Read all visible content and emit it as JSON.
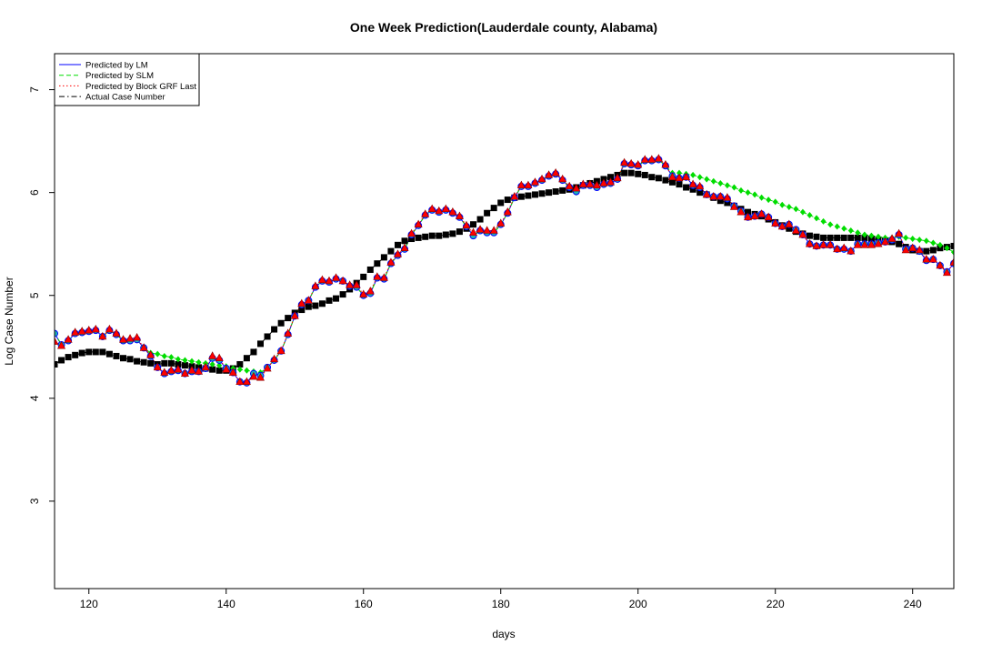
{
  "chart_data": {
    "type": "scatter",
    "title": "One Week Prediction(Lauderdale county, Alabama)",
    "xlabel": "days",
    "ylabel": "Log Case Number",
    "xlim": [
      115,
      246
    ],
    "ylim": [
      2.15,
      7.35
    ],
    "x_ticks": [
      120,
      140,
      160,
      180,
      200,
      220,
      240
    ],
    "y_ticks": [
      3,
      4,
      5,
      6,
      7
    ],
    "legend_position": "top-left",
    "series": [
      {
        "name": "Predicted by LM",
        "color": "#0000ff",
        "line_style": "solid",
        "marker": "circle",
        "x": [
          115,
          116,
          117,
          118,
          119,
          120,
          121,
          122,
          123,
          124,
          125,
          126,
          127,
          128,
          129,
          130,
          131,
          132,
          133,
          134,
          135,
          136,
          137,
          138,
          139,
          140,
          141,
          142,
          143,
          144,
          145,
          146,
          147,
          148,
          149,
          150,
          151,
          152,
          153,
          154,
          155,
          156,
          157,
          158,
          159,
          160,
          161,
          162,
          163,
          164,
          165,
          166,
          167,
          168,
          169,
          170,
          171,
          172,
          173,
          174,
          175,
          176,
          177,
          178,
          179,
          180,
          181,
          182,
          183,
          184,
          185,
          186,
          187,
          188,
          189,
          190,
          191,
          192,
          193,
          194,
          195,
          196,
          197,
          198,
          199,
          200,
          201,
          202,
          203,
          204,
          205,
          206,
          207,
          208,
          209,
          210,
          211,
          212,
          213,
          214,
          215,
          216,
          217,
          218,
          219,
          220,
          221,
          222,
          223,
          224,
          225,
          226,
          227,
          228,
          229,
          230,
          231,
          232,
          233,
          234,
          235,
          236,
          237,
          238,
          239,
          240,
          241,
          242,
          243,
          244,
          245,
          246
        ],
        "values": [
          4.63,
          4.52,
          4.56,
          4.63,
          4.64,
          4.65,
          4.66,
          4.6,
          4.66,
          4.62,
          4.56,
          4.56,
          4.57,
          4.49,
          4.41,
          4.3,
          4.24,
          4.26,
          4.27,
          4.24,
          4.26,
          4.26,
          4.29,
          4.39,
          4.37,
          4.29,
          4.25,
          4.16,
          4.15,
          4.24,
          4.22,
          4.3,
          4.37,
          4.46,
          4.62,
          4.8,
          4.91,
          4.95,
          5.08,
          5.14,
          5.13,
          5.16,
          5.14,
          5.09,
          5.08,
          5.0,
          5.02,
          5.17,
          5.16,
          5.31,
          5.39,
          5.45,
          5.59,
          5.68,
          5.78,
          5.83,
          5.81,
          5.83,
          5.8,
          5.76,
          5.67,
          5.58,
          5.63,
          5.61,
          5.61,
          5.69,
          5.8,
          5.95,
          6.06,
          6.06,
          6.09,
          6.12,
          6.16,
          6.18,
          6.12,
          6.05,
          6.01,
          6.07,
          6.07,
          6.05,
          6.08,
          6.09,
          6.13,
          6.28,
          6.27,
          6.26,
          6.31,
          6.31,
          6.32,
          6.26,
          6.16,
          6.14,
          6.15,
          6.07,
          6.05,
          5.98,
          5.96,
          5.96,
          5.94,
          5.87,
          5.82,
          5.76,
          5.77,
          5.79,
          5.76,
          5.7,
          5.67,
          5.69,
          5.64,
          5.59,
          5.5,
          5.48,
          5.49,
          5.49,
          5.45,
          5.45,
          5.43,
          5.5,
          5.5,
          5.5,
          5.51,
          5.52,
          5.54,
          5.59,
          5.45,
          5.46,
          5.43,
          5.34,
          5.35,
          5.29,
          5.23,
          5.31
        ]
      },
      {
        "name": "Predicted by SLM",
        "color": "#00dd00",
        "line_style": "dashed",
        "marker": "diamond",
        "x": [
          115,
          116,
          117,
          118,
          119,
          120,
          121,
          122,
          123,
          124,
          125,
          126,
          127,
          128,
          129,
          130,
          131,
          132,
          133,
          134,
          135,
          136,
          137,
          138,
          139,
          140,
          141,
          142,
          143,
          144,
          145,
          146,
          147,
          148,
          149,
          150,
          151,
          152,
          153,
          154,
          155,
          156,
          157,
          158,
          159,
          160,
          161,
          162,
          163,
          164,
          165,
          166,
          167,
          168,
          169,
          170,
          171,
          172,
          173,
          174,
          175,
          176,
          177,
          178,
          179,
          180,
          181,
          182,
          183,
          184,
          185,
          186,
          187,
          188,
          189,
          190,
          191,
          192,
          193,
          194,
          195,
          196,
          197,
          198,
          199,
          200,
          201,
          202,
          203,
          204,
          205,
          206,
          207,
          208,
          209,
          210,
          211,
          212,
          213,
          214,
          215,
          216,
          217,
          218,
          219,
          220,
          221,
          222,
          223,
          224,
          225,
          226,
          227,
          228,
          229,
          230,
          231,
          232,
          233,
          234,
          235,
          236,
          237,
          238,
          239,
          240,
          241,
          242,
          243,
          244,
          245,
          246
        ],
        "values": [
          4.64,
          4.52,
          4.56,
          4.63,
          4.64,
          4.65,
          4.66,
          4.6,
          4.66,
          4.62,
          4.56,
          4.56,
          4.57,
          4.49,
          4.44,
          4.43,
          4.41,
          4.4,
          4.38,
          4.37,
          4.36,
          4.35,
          4.34,
          4.33,
          4.32,
          4.31,
          4.29,
          4.28,
          4.27,
          4.26,
          4.25,
          4.3,
          4.37,
          4.46,
          4.62,
          4.8,
          4.91,
          4.95,
          5.08,
          5.14,
          5.13,
          5.16,
          5.14,
          5.09,
          5.08,
          5.0,
          5.02,
          5.17,
          5.16,
          5.31,
          5.39,
          5.45,
          5.59,
          5.68,
          5.78,
          5.83,
          5.81,
          5.83,
          5.8,
          5.76,
          5.67,
          5.58,
          5.63,
          5.61,
          5.61,
          5.69,
          5.8,
          5.95,
          6.06,
          6.06,
          6.09,
          6.12,
          6.16,
          6.18,
          6.12,
          6.05,
          6.0,
          6.07,
          6.07,
          6.05,
          6.08,
          6.09,
          6.13,
          6.28,
          6.27,
          6.26,
          6.31,
          6.31,
          6.32,
          6.26,
          6.19,
          6.19,
          6.18,
          6.17,
          6.15,
          6.13,
          6.11,
          6.09,
          6.07,
          6.05,
          6.02,
          6.0,
          5.98,
          5.95,
          5.93,
          5.91,
          5.88,
          5.86,
          5.84,
          5.81,
          5.78,
          5.75,
          5.72,
          5.69,
          5.67,
          5.65,
          5.63,
          5.61,
          5.59,
          5.58,
          5.57,
          5.56,
          5.56,
          5.57,
          5.56,
          5.55,
          5.54,
          5.53,
          5.51,
          5.49,
          5.46,
          5.42
        ]
      },
      {
        "name": "Predicted by Block GRF Last",
        "color": "#ff0000",
        "line_style": "dotted",
        "marker": "triangle",
        "x": [
          115,
          116,
          117,
          118,
          119,
          120,
          121,
          122,
          123,
          124,
          125,
          126,
          127,
          128,
          129,
          130,
          131,
          132,
          133,
          134,
          135,
          136,
          137,
          138,
          139,
          140,
          141,
          142,
          143,
          144,
          145,
          146,
          147,
          148,
          149,
          150,
          151,
          152,
          153,
          154,
          155,
          156,
          157,
          158,
          159,
          160,
          161,
          162,
          163,
          164,
          165,
          166,
          167,
          168,
          169,
          170,
          171,
          172,
          173,
          174,
          175,
          176,
          177,
          178,
          179,
          180,
          181,
          182,
          183,
          184,
          185,
          186,
          187,
          188,
          189,
          190,
          191,
          192,
          193,
          194,
          195,
          196,
          197,
          198,
          199,
          200,
          201,
          202,
          203,
          204,
          205,
          206,
          207,
          208,
          209,
          210,
          211,
          212,
          213,
          214,
          215,
          216,
          217,
          218,
          219,
          220,
          221,
          222,
          223,
          224,
          225,
          226,
          227,
          228,
          229,
          230,
          231,
          232,
          233,
          234,
          235,
          236,
          237,
          238,
          239,
          240,
          241,
          242,
          243,
          244,
          245,
          246
        ],
        "values": [
          4.55,
          4.51,
          4.57,
          4.64,
          4.65,
          4.66,
          4.67,
          4.6,
          4.67,
          4.63,
          4.57,
          4.58,
          4.59,
          4.49,
          4.42,
          4.3,
          4.25,
          4.27,
          4.28,
          4.24,
          4.27,
          4.26,
          4.3,
          4.41,
          4.39,
          4.28,
          4.25,
          4.16,
          4.16,
          4.21,
          4.2,
          4.29,
          4.38,
          4.46,
          4.63,
          4.8,
          4.92,
          4.95,
          5.09,
          5.15,
          5.14,
          5.17,
          5.14,
          5.1,
          5.1,
          5.01,
          5.04,
          5.18,
          5.17,
          5.32,
          5.4,
          5.46,
          5.6,
          5.69,
          5.79,
          5.84,
          5.82,
          5.84,
          5.81,
          5.77,
          5.68,
          5.61,
          5.64,
          5.63,
          5.63,
          5.7,
          5.81,
          5.96,
          6.07,
          6.07,
          6.1,
          6.13,
          6.17,
          6.19,
          6.13,
          6.06,
          6.04,
          6.08,
          6.08,
          6.07,
          6.09,
          6.1,
          6.14,
          6.29,
          6.28,
          6.27,
          6.32,
          6.32,
          6.33,
          6.27,
          6.15,
          6.14,
          6.15,
          6.08,
          6.06,
          5.98,
          5.96,
          5.96,
          5.95,
          5.86,
          5.81,
          5.76,
          5.77,
          5.79,
          5.76,
          5.7,
          5.67,
          5.69,
          5.63,
          5.59,
          5.5,
          5.48,
          5.49,
          5.49,
          5.45,
          5.46,
          5.43,
          5.49,
          5.49,
          5.49,
          5.5,
          5.52,
          5.55,
          5.6,
          5.44,
          5.46,
          5.44,
          5.35,
          5.35,
          5.29,
          5.22,
          5.32
        ]
      },
      {
        "name": "Actual Case Number",
        "color": "#000000",
        "line_style": "dashdot",
        "marker": "square",
        "x": [
          115,
          116,
          117,
          118,
          119,
          120,
          121,
          122,
          123,
          124,
          125,
          126,
          127,
          128,
          129,
          130,
          131,
          132,
          133,
          134,
          135,
          136,
          137,
          138,
          139,
          140,
          141,
          142,
          143,
          144,
          145,
          146,
          147,
          148,
          149,
          150,
          151,
          152,
          153,
          154,
          155,
          156,
          157,
          158,
          159,
          160,
          161,
          162,
          163,
          164,
          165,
          166,
          167,
          168,
          169,
          170,
          171,
          172,
          173,
          174,
          175,
          176,
          177,
          178,
          179,
          180,
          181,
          182,
          183,
          184,
          185,
          186,
          187,
          188,
          189,
          190,
          191,
          192,
          193,
          194,
          195,
          196,
          197,
          198,
          199,
          200,
          201,
          202,
          203,
          204,
          205,
          206,
          207,
          208,
          209,
          210,
          211,
          212,
          213,
          214,
          215,
          216,
          217,
          218,
          219,
          220,
          221,
          222,
          223,
          224,
          225,
          226,
          227,
          228,
          229,
          230,
          231,
          232,
          233,
          234,
          235,
          236,
          237,
          238,
          239,
          240,
          241,
          242,
          243,
          244,
          245,
          246
        ],
        "values": [
          4.33,
          4.37,
          4.4,
          4.42,
          4.44,
          4.45,
          4.45,
          4.45,
          4.43,
          4.41,
          4.39,
          4.38,
          4.36,
          4.35,
          4.34,
          4.33,
          4.34,
          4.34,
          4.33,
          4.32,
          4.31,
          4.3,
          4.29,
          4.28,
          4.27,
          4.27,
          4.29,
          4.33,
          4.39,
          4.45,
          4.53,
          4.6,
          4.67,
          4.73,
          4.78,
          4.83,
          4.86,
          4.89,
          4.9,
          4.92,
          4.95,
          4.97,
          5.01,
          5.06,
          5.12,
          5.18,
          5.25,
          5.31,
          5.37,
          5.43,
          5.49,
          5.53,
          5.55,
          5.56,
          5.57,
          5.58,
          5.58,
          5.59,
          5.6,
          5.62,
          5.65,
          5.69,
          5.74,
          5.8,
          5.85,
          5.9,
          5.93,
          5.95,
          5.96,
          5.97,
          5.98,
          5.99,
          6.0,
          6.01,
          6.02,
          6.03,
          6.05,
          6.07,
          6.09,
          6.11,
          6.13,
          6.15,
          6.17,
          6.19,
          6.19,
          6.18,
          6.17,
          6.15,
          6.14,
          6.12,
          6.1,
          6.08,
          6.05,
          6.03,
          6.0,
          5.98,
          5.95,
          5.92,
          5.9,
          5.87,
          5.84,
          5.81,
          5.79,
          5.77,
          5.74,
          5.71,
          5.68,
          5.65,
          5.62,
          5.6,
          5.58,
          5.57,
          5.56,
          5.56,
          5.56,
          5.56,
          5.56,
          5.56,
          5.56,
          5.55,
          5.54,
          5.53,
          5.52,
          5.5,
          5.47,
          5.44,
          5.43,
          5.43,
          5.44,
          5.46,
          5.47,
          5.48
        ]
      }
    ]
  }
}
